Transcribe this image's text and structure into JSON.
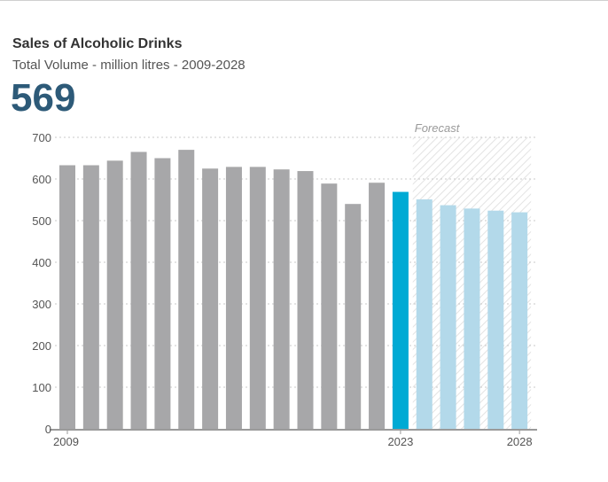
{
  "header": {
    "title": "Sales of Alcoholic Drinks",
    "subtitle": "Total Volume - million litres - 2009-2028",
    "headline_value": "569"
  },
  "chart_data": {
    "type": "bar",
    "categories": [
      "2009",
      "2010",
      "2011",
      "2012",
      "2013",
      "2014",
      "2015",
      "2016",
      "2017",
      "2018",
      "2019",
      "2020",
      "2021",
      "2022",
      "2023",
      "2024",
      "2025",
      "2026",
      "2027",
      "2028"
    ],
    "values": [
      633,
      633,
      644,
      665,
      650,
      670,
      625,
      629,
      629,
      623,
      619,
      589,
      540,
      591,
      569,
      551,
      537,
      529,
      524,
      520
    ],
    "x_tick_labels": [
      "2009",
      "2023",
      "2028"
    ],
    "y_ticks": [
      0,
      100,
      200,
      300,
      400,
      500,
      600,
      700
    ],
    "ylim": [
      0,
      700
    ],
    "forecast_label": "Forecast",
    "forecast_start": "2024",
    "highlight_category": "2023",
    "grid": true,
    "colors": {
      "historical": "#a7a7a9",
      "current": "#00aad4",
      "forecast": "#b3d9ea",
      "forecast_hatch": "#e3e3e3",
      "grid": "#c9c9c9",
      "axis": "#9a9a9a",
      "headline": "#2d5a78"
    }
  }
}
